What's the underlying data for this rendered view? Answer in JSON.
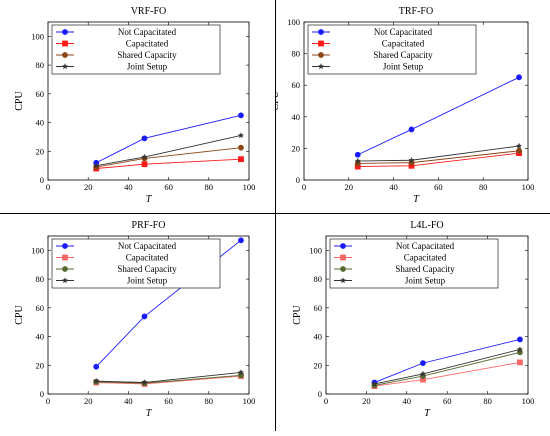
{
  "chart_data": [
    {
      "type": "line",
      "title": "VRF-FO",
      "xlabel": "T",
      "ylabel": "CPU",
      "xlim": [
        0,
        100
      ],
      "ylim": [
        0,
        110
      ],
      "xticks": [
        0,
        20,
        40,
        60,
        80,
        100
      ],
      "yticks": [
        0,
        20,
        40,
        60,
        80,
        100
      ],
      "legend_position": "top-left",
      "x": [
        24,
        48,
        96
      ],
      "series": [
        {
          "name": "Not Capacitated",
          "values": [
            12,
            29,
            45
          ],
          "color": "#1a1aff",
          "marker": "circle"
        },
        {
          "name": "Capacitated",
          "values": [
            8,
            11,
            14.5
          ],
          "color": "#ff1a1a",
          "marker": "square"
        },
        {
          "name": "Shared Capacity",
          "values": [
            9,
            15,
            22.5
          ],
          "color": "#8b4513",
          "marker": "circle"
        },
        {
          "name": "Joint Setup",
          "values": [
            10,
            16,
            31
          ],
          "color": "#333333",
          "marker": "star"
        }
      ]
    },
    {
      "type": "line",
      "title": "TRF-FO",
      "xlabel": "T",
      "ylabel": "CPU",
      "xlim": [
        0,
        100
      ],
      "ylim": [
        0,
        100
      ],
      "xticks": [
        0,
        20,
        40,
        60,
        80,
        100
      ],
      "yticks": [
        0,
        20,
        40,
        60,
        80,
        100
      ],
      "legend_position": "top-left",
      "x": [
        24,
        48,
        96
      ],
      "series": [
        {
          "name": "Not Capacitated",
          "values": [
            16,
            32,
            65
          ],
          "color": "#1a1aff",
          "marker": "circle"
        },
        {
          "name": "Capacitated",
          "values": [
            8.5,
            9,
            17
          ],
          "color": "#ff1a1a",
          "marker": "square"
        },
        {
          "name": "Shared Capacity",
          "values": [
            10.5,
            11,
            18.5
          ],
          "color": "#8b4513",
          "marker": "circle"
        },
        {
          "name": "Joint Setup",
          "values": [
            12,
            12.5,
            21.5
          ],
          "color": "#333333",
          "marker": "star"
        }
      ]
    },
    {
      "type": "line",
      "title": "PRF-FO",
      "xlabel": "T",
      "ylabel": "CPU",
      "xlim": [
        0,
        100
      ],
      "ylim": [
        0,
        110
      ],
      "xticks": [
        0,
        20,
        40,
        60,
        80,
        100
      ],
      "yticks": [
        0,
        20,
        40,
        60,
        80,
        100
      ],
      "legend_position": "top-left",
      "x": [
        24,
        48,
        96
      ],
      "series": [
        {
          "name": "Not Capacitated",
          "values": [
            19,
            54,
            107
          ],
          "color": "#1a1aff",
          "marker": "circle"
        },
        {
          "name": "Capacitated",
          "values": [
            8,
            7,
            12.5
          ],
          "color": "#ff6666",
          "marker": "square"
        },
        {
          "name": "Shared Capacity",
          "values": [
            8.5,
            7.5,
            13
          ],
          "color": "#556b2f",
          "marker": "circle"
        },
        {
          "name": "Joint Setup",
          "values": [
            9,
            8,
            15
          ],
          "color": "#333333",
          "marker": "star"
        }
      ]
    },
    {
      "type": "line",
      "title": "L4L-FO",
      "xlabel": "T",
      "ylabel": "CPU",
      "xlim": [
        0,
        100
      ],
      "ylim": [
        0,
        110
      ],
      "xticks": [
        0,
        20,
        40,
        60,
        80,
        100
      ],
      "yticks": [
        0,
        20,
        40,
        60,
        80,
        100
      ],
      "legend_position": "top-left",
      "x": [
        24,
        48,
        96
      ],
      "series": [
        {
          "name": "Not Capacitated",
          "values": [
            8,
            21.5,
            38
          ],
          "color": "#1a1aff",
          "marker": "circle"
        },
        {
          "name": "Capacitated",
          "values": [
            5.5,
            10,
            22
          ],
          "color": "#ff6666",
          "marker": "square"
        },
        {
          "name": "Shared Capacity",
          "values": [
            6,
            12.5,
            29
          ],
          "color": "#556b2f",
          "marker": "circle"
        },
        {
          "name": "Joint Setup",
          "values": [
            7,
            14,
            31
          ],
          "color": "#333333",
          "marker": "star"
        }
      ]
    }
  ]
}
